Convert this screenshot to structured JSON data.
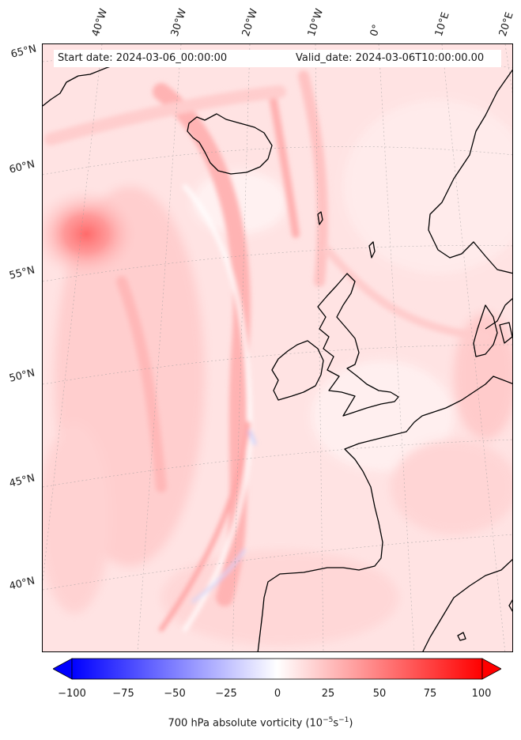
{
  "header": {
    "start_date": "Start date: 2024-03-06_00:00:00",
    "valid_date": "Valid_date: 2024-03-06T10:00:00.00"
  },
  "longitude_labels": [
    "40°W",
    "30°W",
    "20°W",
    "10°W",
    "0°",
    "10°E",
    "20°E"
  ],
  "latitude_labels": [
    "65°N",
    "60°N",
    "55°N",
    "50°N",
    "45°N",
    "40°N"
  ],
  "colorbar": {
    "title_main": "700 hPa absolute vorticity (10",
    "title_exp1": "−5",
    "title_mid": "s",
    "title_exp2": "−1",
    "title_end": ")",
    "ticks": [
      "−100",
      "−75",
      "−50",
      "−25",
      "0",
      "25",
      "50",
      "75",
      "100"
    ],
    "range": [
      -100,
      100
    ],
    "colormap": "bwr",
    "extend": "both"
  },
  "colors": {
    "low": "#0000ff",
    "mid": "#ffffff",
    "high": "#ff0000",
    "field_base": "#ffe4e4",
    "coast": "#000000"
  }
}
